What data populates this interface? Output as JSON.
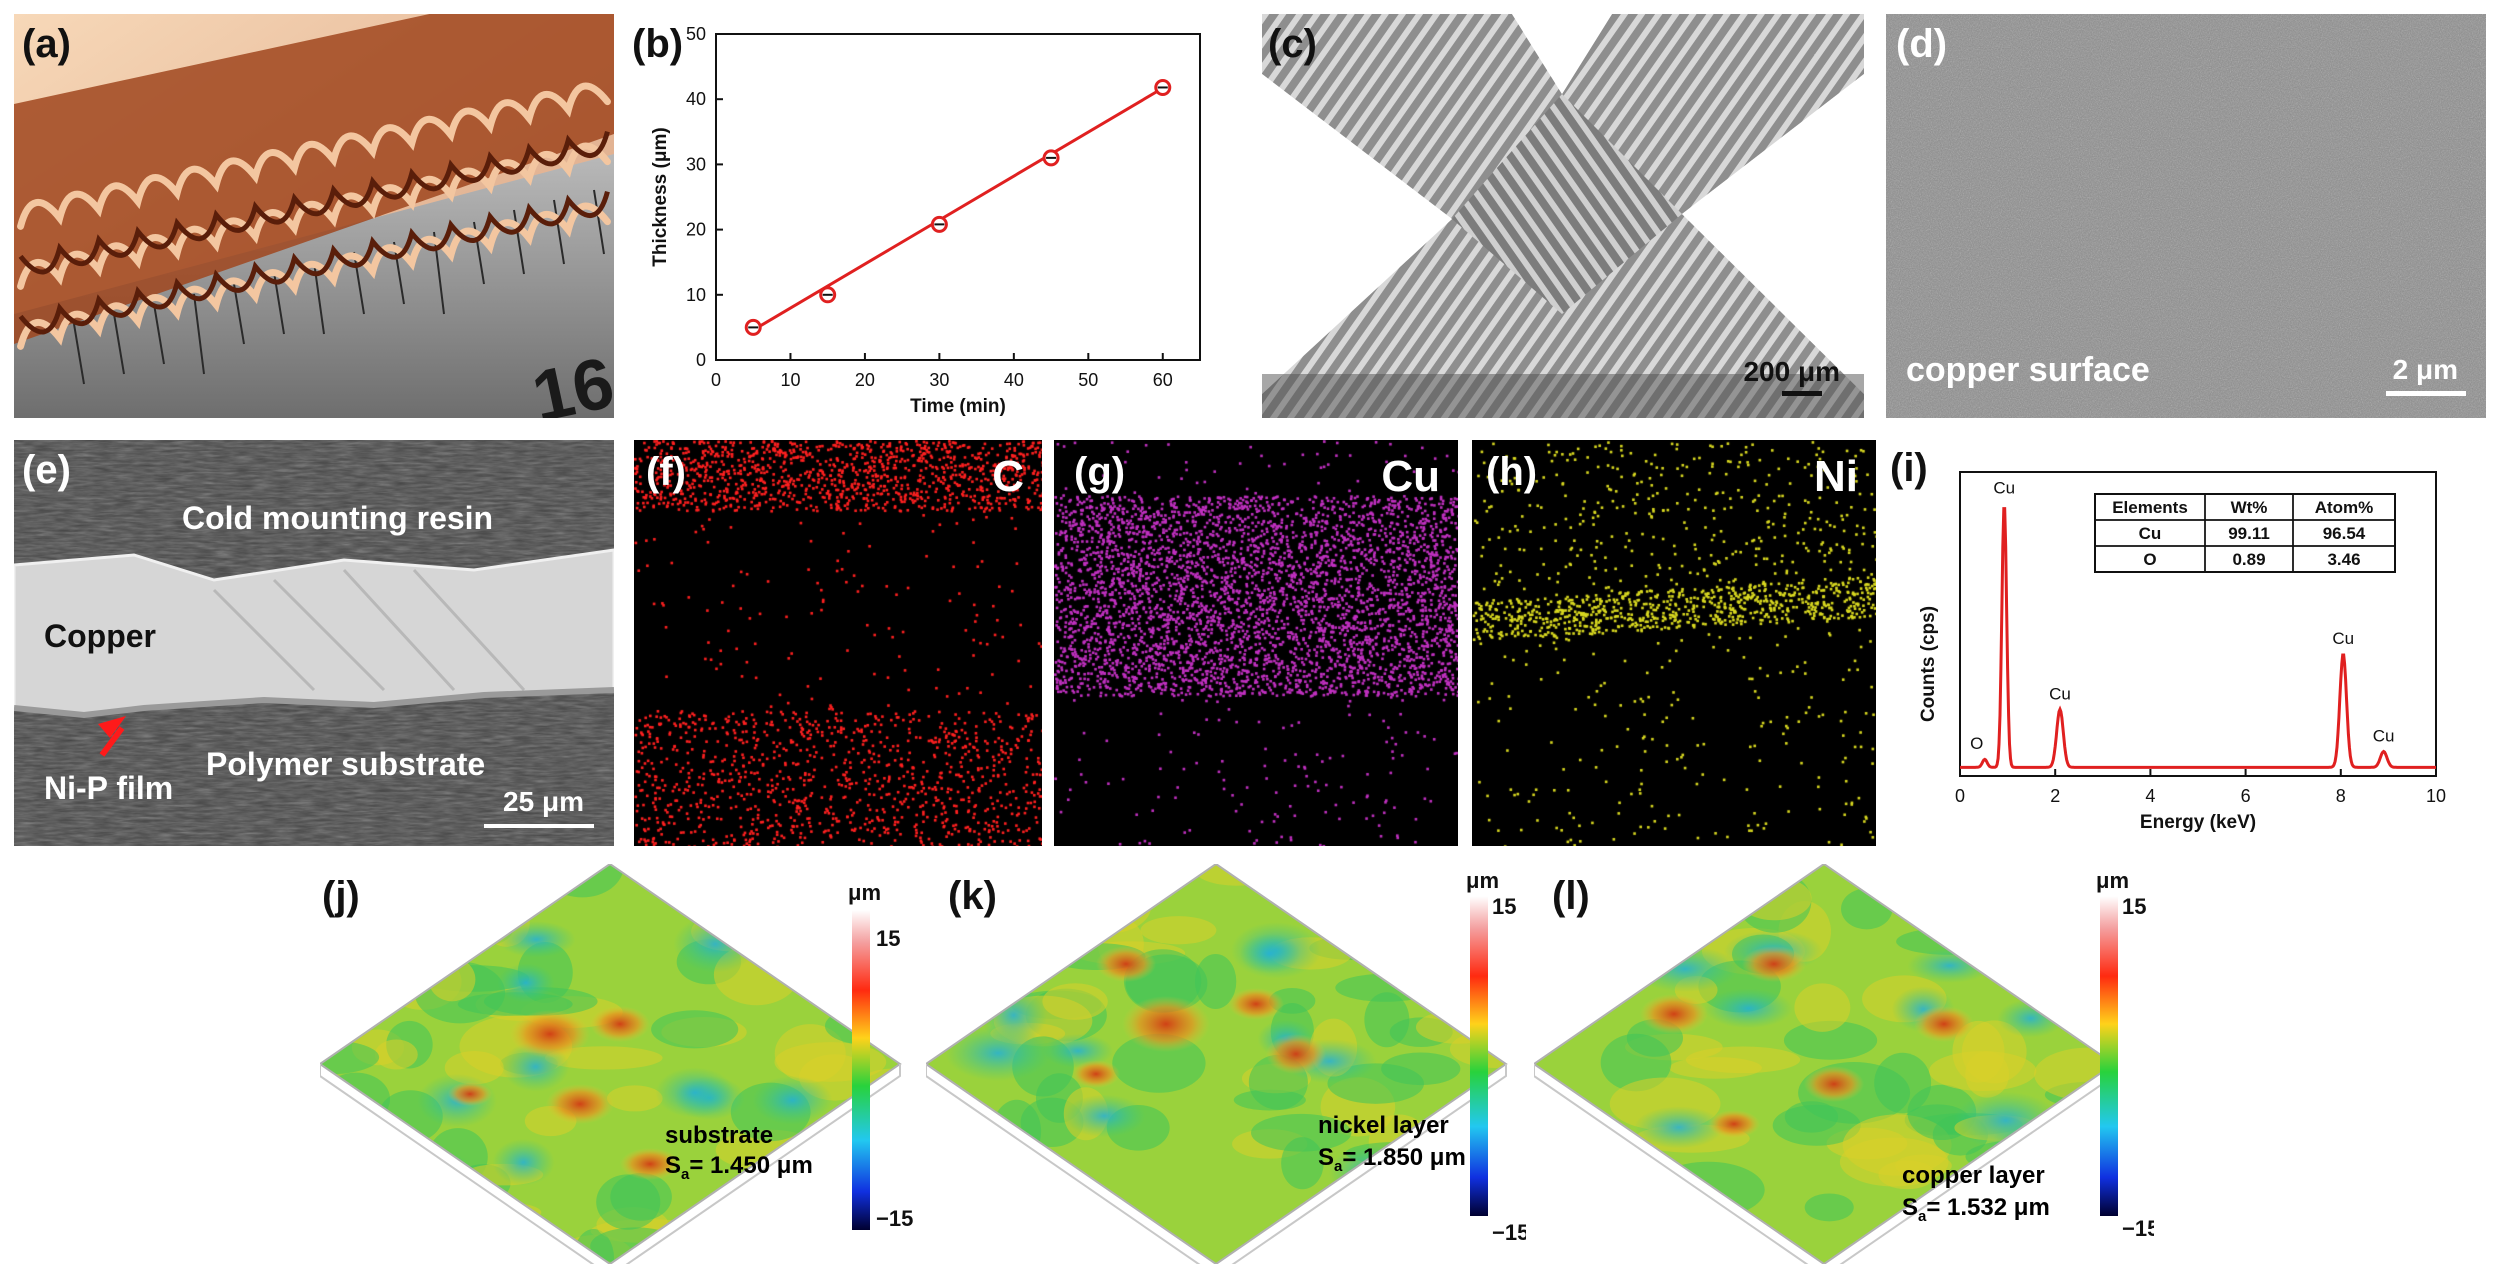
{
  "panels": {
    "a": {
      "label": "(a)",
      "ruler_number": "16"
    },
    "b": {
      "label": "(b)"
    },
    "c": {
      "label": "(c)",
      "scale": "200 μm"
    },
    "d": {
      "label": "(d)",
      "caption": "copper surface",
      "scale": "2 μm"
    },
    "e": {
      "label": "(e)",
      "resin": "Cold mounting resin",
      "copper": "Copper",
      "polymer": "Polymer substrate",
      "nip": "Ni-P film",
      "scale": "25 μm"
    },
    "f": {
      "label": "(f)",
      "element": "C",
      "color": "#ff2020"
    },
    "g": {
      "label": "(g)",
      "element": "Cu",
      "color": "#c030c0"
    },
    "h": {
      "label": "(h)",
      "element": "Ni",
      "color": "#d8d820"
    },
    "i": {
      "label": "(i)"
    },
    "j": {
      "label": "(j)",
      "name": "substrate",
      "sa_prefix": "S",
      "sa_sub": "a",
      "sa_value": "= 1.450 μm"
    },
    "k": {
      "label": "(k)",
      "name": "nickel layer",
      "sa_prefix": "S",
      "sa_sub": "a",
      "sa_value": "= 1.850 μm"
    },
    "l": {
      "label": "(l)",
      "name": "copper layer",
      "sa_prefix": "S",
      "sa_sub": "a",
      "sa_value": "= 1.532 μm"
    }
  },
  "colorbar": {
    "unit": "μm",
    "max": "15",
    "min": "−15"
  },
  "chart_data": [
    {
      "type": "scatter",
      "id": "b",
      "x": [
        5,
        15,
        30,
        45,
        60
      ],
      "y": [
        5.0,
        10.0,
        20.8,
        31.0,
        41.8
      ],
      "fit_line": {
        "x": [
          5,
          60
        ],
        "y": [
          4.6,
          41.7
        ]
      },
      "xlabel": "Time (min)",
      "ylabel": "Thickness (μm)",
      "xlim": [
        0,
        65
      ],
      "ylim": [
        0,
        50
      ],
      "xticks": [
        "0",
        "10",
        "20",
        "30",
        "40",
        "50",
        "60"
      ],
      "yticks": [
        "0",
        "10",
        "20",
        "30",
        "40",
        "50"
      ],
      "color": "#e02020"
    },
    {
      "type": "line",
      "id": "i",
      "xlabel": "Energy (keV)",
      "ylabel": "Counts (cps)",
      "xlim": [
        0,
        10
      ],
      "xticks": [
        "0",
        "2",
        "4",
        "6",
        "8",
        "10"
      ],
      "peaks": [
        {
          "label": "O",
          "x": 0.52,
          "h": 0.03
        },
        {
          "label": "Cu",
          "x": 0.93,
          "h": 1.0
        },
        {
          "label": "Cu",
          "x": 2.1,
          "h": 0.22
        },
        {
          "label": "Cu",
          "x": 8.05,
          "h": 0.43
        },
        {
          "label": "Cu",
          "x": 8.9,
          "h": 0.06
        }
      ],
      "table": {
        "headers": [
          "Elements",
          "Wt%",
          "Atom%"
        ],
        "rows": [
          [
            "Cu",
            "99.11",
            "96.54"
          ],
          [
            "O",
            "0.89",
            "3.46"
          ]
        ]
      },
      "color": "#e02020"
    }
  ]
}
